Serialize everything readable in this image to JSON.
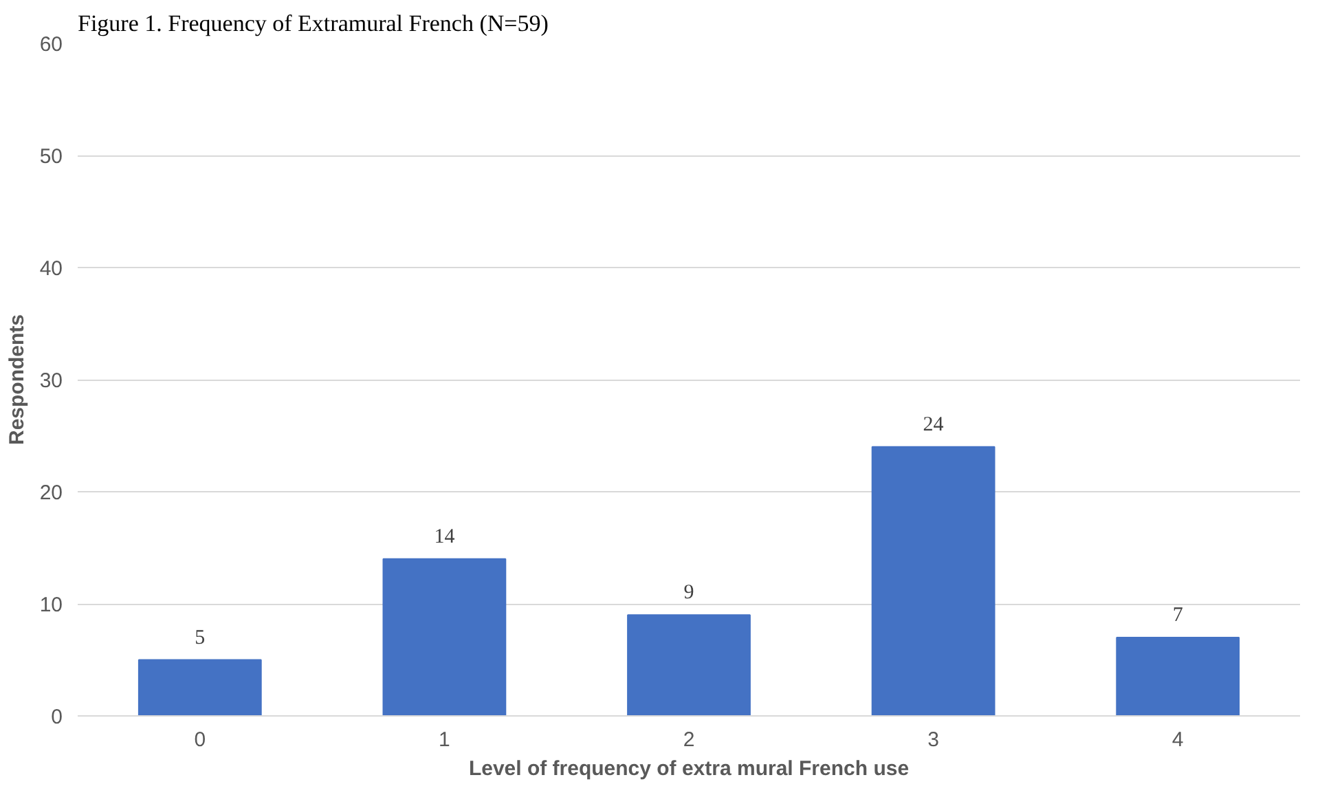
{
  "chart_data": {
    "type": "bar",
    "title": "Figure 1. Frequency of Extramural French (N=59)",
    "xlabel": "Level of frequency of extra mural French use",
    "ylabel": "Respondents",
    "categories": [
      "0",
      "1",
      "2",
      "3",
      "4"
    ],
    "values": [
      5,
      14,
      9,
      24,
      7
    ],
    "color": "#4472c4",
    "ylim": [
      0,
      60
    ],
    "yticks": [
      0,
      10,
      20,
      30,
      40,
      50,
      60
    ],
    "grid": "y",
    "data_labels": true
  }
}
